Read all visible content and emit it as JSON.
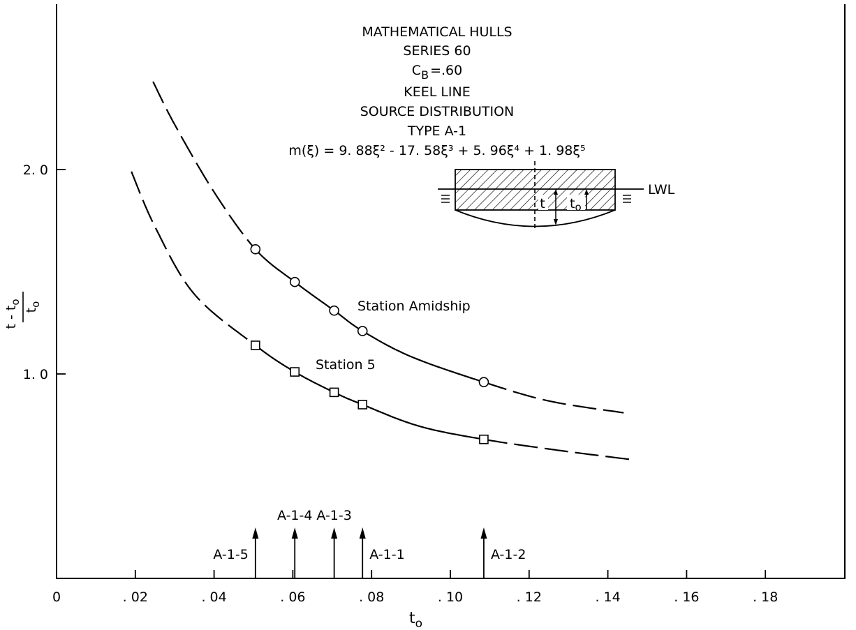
{
  "chart_data": {
    "type": "line",
    "title_lines": [
      "MATHEMATICAL HULLS",
      "SERIES 60",
      "KEEL LINE",
      "SOURCE DISTRIBUTION",
      "TYPE A-1"
    ],
    "cb_label": {
      "symbol": "C",
      "subscript": "B",
      "value": "=.60"
    },
    "formula": "m(ξ) = 9. 88ξ² - 17. 58ξ³ + 5. 96ξ⁴ + 1. 98ξ⁵",
    "xlabel": {
      "base": "t",
      "subscript": "o"
    },
    "ylabel": "(t - tₒ) / tₒ",
    "xlim": [
      0,
      0.2
    ],
    "ylim": [
      0,
      2.5
    ],
    "x_ticks": [
      {
        "value": 0,
        "label": "0"
      },
      {
        "value": 0.02,
        "label": ". 02"
      },
      {
        "value": 0.04,
        "label": ". 04"
      },
      {
        "value": 0.06,
        "label": ". 06"
      },
      {
        "value": 0.08,
        "label": ". 08"
      },
      {
        "value": 0.1,
        "label": ". 10"
      },
      {
        "value": 0.12,
        "label": ". 12"
      },
      {
        "value": 0.14,
        "label": ". 14"
      },
      {
        "value": 0.16,
        "label": ". 16"
      },
      {
        "value": 0.18,
        "label": ". 18"
      }
    ],
    "y_ticks": [
      {
        "value": 1.0,
        "label": "1. 0"
      },
      {
        "value": 2.0,
        "label": "2. 0"
      }
    ],
    "series": [
      {
        "name": "Station Amidship",
        "marker": "circle",
        "points": [
          {
            "x": 0.0505,
            "y": 1.61
          },
          {
            "x": 0.0605,
            "y": 1.45
          },
          {
            "x": 0.0705,
            "y": 1.31
          },
          {
            "x": 0.0777,
            "y": 1.21
          },
          {
            "x": 0.1085,
            "y": 0.96
          }
        ],
        "curve": [
          {
            "x": 0.0245,
            "y": 2.43
          },
          {
            "x": 0.03,
            "y": 2.22
          },
          {
            "x": 0.04,
            "y": 1.89
          },
          {
            "x": 0.0505,
            "y": 1.61
          },
          {
            "x": 0.0605,
            "y": 1.45
          },
          {
            "x": 0.0705,
            "y": 1.31
          },
          {
            "x": 0.0777,
            "y": 1.21
          },
          {
            "x": 0.09,
            "y": 1.085
          },
          {
            "x": 0.1085,
            "y": 0.96
          },
          {
            "x": 0.125,
            "y": 0.868
          },
          {
            "x": 0.144,
            "y": 0.81
          }
        ],
        "dashed_ranges": [
          [
            0.0245,
            0.0505
          ],
          [
            0.1085,
            0.144
          ]
        ]
      },
      {
        "name": "Station 5",
        "marker": "square",
        "points": [
          {
            "x": 0.0505,
            "y": 1.14
          },
          {
            "x": 0.0605,
            "y": 1.01
          },
          {
            "x": 0.0705,
            "y": 0.91
          },
          {
            "x": 0.0777,
            "y": 0.85
          },
          {
            "x": 0.1085,
            "y": 0.68
          }
        ],
        "curve": [
          {
            "x": 0.019,
            "y": 1.99
          },
          {
            "x": 0.025,
            "y": 1.72
          },
          {
            "x": 0.035,
            "y": 1.39
          },
          {
            "x": 0.0505,
            "y": 1.14
          },
          {
            "x": 0.0605,
            "y": 1.01
          },
          {
            "x": 0.0705,
            "y": 0.91
          },
          {
            "x": 0.0777,
            "y": 0.85
          },
          {
            "x": 0.092,
            "y": 0.745
          },
          {
            "x": 0.1085,
            "y": 0.68
          },
          {
            "x": 0.128,
            "y": 0.625
          },
          {
            "x": 0.1465,
            "y": 0.58
          }
        ],
        "dashed_ranges": [
          [
            0.019,
            0.0505
          ],
          [
            0.1085,
            0.1465
          ]
        ]
      }
    ],
    "model_markers": [
      {
        "label": "A-1-5",
        "x": 0.0505,
        "label_side": "left",
        "label_level": "low"
      },
      {
        "label": "A-1-4",
        "x": 0.0605,
        "label_side": "center",
        "label_level": "high"
      },
      {
        "label": "A-1-3",
        "x": 0.0705,
        "label_side": "center",
        "label_level": "high"
      },
      {
        "label": "A-1-1",
        "x": 0.0777,
        "label_side": "right",
        "label_level": "low"
      },
      {
        "label": "A-1-2",
        "x": 0.1085,
        "label_side": "right",
        "label_level": "low"
      }
    ],
    "inset": {
      "waterline_label": "LWL",
      "draft_label": "t",
      "keel_label": {
        "base": "t",
        "subscript": "o"
      }
    },
    "grid": false
  }
}
